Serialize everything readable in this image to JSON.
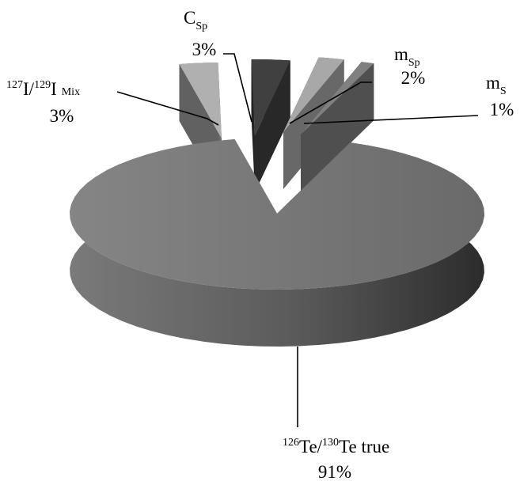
{
  "chart_data": {
    "type": "pie",
    "style": "3d-exploded",
    "slices": [
      {
        "key": "te",
        "label": {
          "pre_sup": "126",
          "base": "Te/",
          "mid_sup": "130",
          "tail": "Te true"
        },
        "value": 91,
        "pct_label": "91%",
        "color": "#6e6e6e"
      },
      {
        "key": "i",
        "label": {
          "pre_sup": "127",
          "base": "I/",
          "mid_sup": "129",
          "tail": "I",
          "sub": "Mix"
        },
        "value": 3,
        "pct_label": "3%",
        "color": "#b0b0b0"
      },
      {
        "key": "csp",
        "label": {
          "base": "C",
          "sub": "Sp"
        },
        "value": 3,
        "pct_label": "3%",
        "color": "#404040"
      },
      {
        "key": "msp",
        "label": {
          "base": "m",
          "sub": "Sp"
        },
        "value": 2,
        "pct_label": "2%",
        "color": "#a8a8a8"
      },
      {
        "key": "ms",
        "label": {
          "base": "m",
          "sub": "S"
        },
        "value": 1,
        "pct_label": "1%",
        "color": "#808080"
      }
    ]
  }
}
